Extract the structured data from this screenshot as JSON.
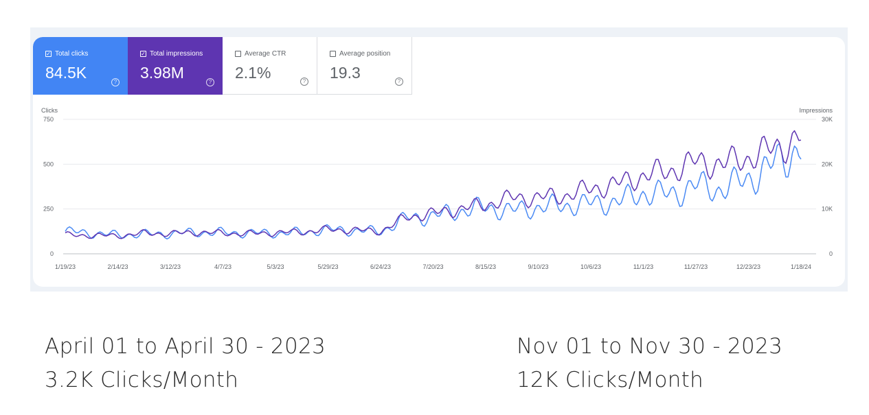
{
  "metrics": [
    {
      "label": "Total clicks",
      "value": "84.5K",
      "checked": true,
      "color": "#4285f4"
    },
    {
      "label": "Total impressions",
      "value": "3.98M",
      "checked": true,
      "color": "#5e35b1"
    },
    {
      "label": "Average CTR",
      "value": "2.1%",
      "checked": false,
      "color": "#ffffff"
    },
    {
      "label": "Average position",
      "value": "19.3",
      "checked": false,
      "color": "#ffffff"
    }
  ],
  "chart_data": {
    "type": "line",
    "left_axis": {
      "title": "Clicks",
      "ticks": [
        "0",
        "250",
        "500",
        "750"
      ],
      "tick_values": [
        0,
        250,
        500,
        750
      ],
      "ylim": [
        0,
        750
      ]
    },
    "right_axis": {
      "title": "Impressions",
      "ticks": [
        "0",
        "10K",
        "20K",
        "30K"
      ],
      "tick_values": [
        0,
        10000,
        20000,
        30000
      ],
      "ylim": [
        0,
        30000
      ]
    },
    "x_ticks": [
      "1/19/23",
      "2/14/23",
      "3/12/23",
      "4/7/23",
      "5/3/23",
      "5/29/23",
      "6/24/23",
      "7/20/23",
      "8/15/23",
      "9/10/23",
      "10/6/23",
      "11/1/23",
      "11/27/23",
      "12/23/23",
      "1/18/24"
    ],
    "grid": true,
    "series": [
      {
        "name": "Clicks",
        "axis": "left",
        "color": "#4a8af4",
        "x": [
          "1/19/23",
          "2/1/23",
          "2/14/23",
          "2/27/23",
          "3/12/23",
          "3/25/23",
          "4/7/23",
          "4/20/23",
          "5/3/23",
          "5/16/23",
          "5/29/23",
          "6/11/23",
          "6/24/23",
          "7/7/23",
          "7/20/23",
          "8/2/23",
          "8/15/23",
          "8/28/23",
          "9/10/23",
          "9/23/23",
          "10/6/23",
          "10/19/23",
          "11/1/23",
          "11/14/23",
          "11/27/23",
          "12/10/23",
          "12/23/23",
          "1/5/24",
          "1/18/24"
        ],
        "values": [
          125,
          115,
          105,
          110,
          112,
          120,
          118,
          116,
          115,
          120,
          135,
          130,
          125,
          200,
          210,
          240,
          260,
          240,
          260,
          270,
          280,
          290,
          340,
          330,
          380,
          360,
          420,
          500,
          600
        ]
      },
      {
        "name": "Impressions",
        "axis": "right",
        "color": "#5e35b1",
        "x": [
          "1/19/23",
          "2/1/23",
          "2/14/23",
          "2/27/23",
          "3/12/23",
          "3/25/23",
          "4/7/23",
          "4/20/23",
          "5/3/23",
          "5/16/23",
          "5/29/23",
          "6/11/23",
          "6/24/23",
          "7/7/23",
          "7/20/23",
          "8/2/23",
          "8/15/23",
          "8/28/23",
          "9/10/23",
          "9/23/23",
          "10/6/23",
          "10/19/23",
          "11/1/23",
          "11/14/23",
          "11/27/23",
          "12/10/23",
          "12/23/23",
          "1/5/24",
          "1/18/24"
        ],
        "values": [
          4200,
          4100,
          4000,
          4600,
          4500,
          4800,
          4600,
          4500,
          4700,
          4900,
          5400,
          5300,
          5000,
          8200,
          9000,
          10000,
          11000,
          12500,
          12500,
          13000,
          14500,
          15500,
          17500,
          18500,
          20500,
          20000,
          21500,
          23500,
          26000
        ]
      }
    ]
  },
  "notes": {
    "left_range": "April 01 to April 30 - 2023",
    "left_stat": "3.2K Clicks/Month",
    "right_range": "Nov 01 to Nov 30 - 2023",
    "right_stat": "12K Clicks/Month"
  }
}
